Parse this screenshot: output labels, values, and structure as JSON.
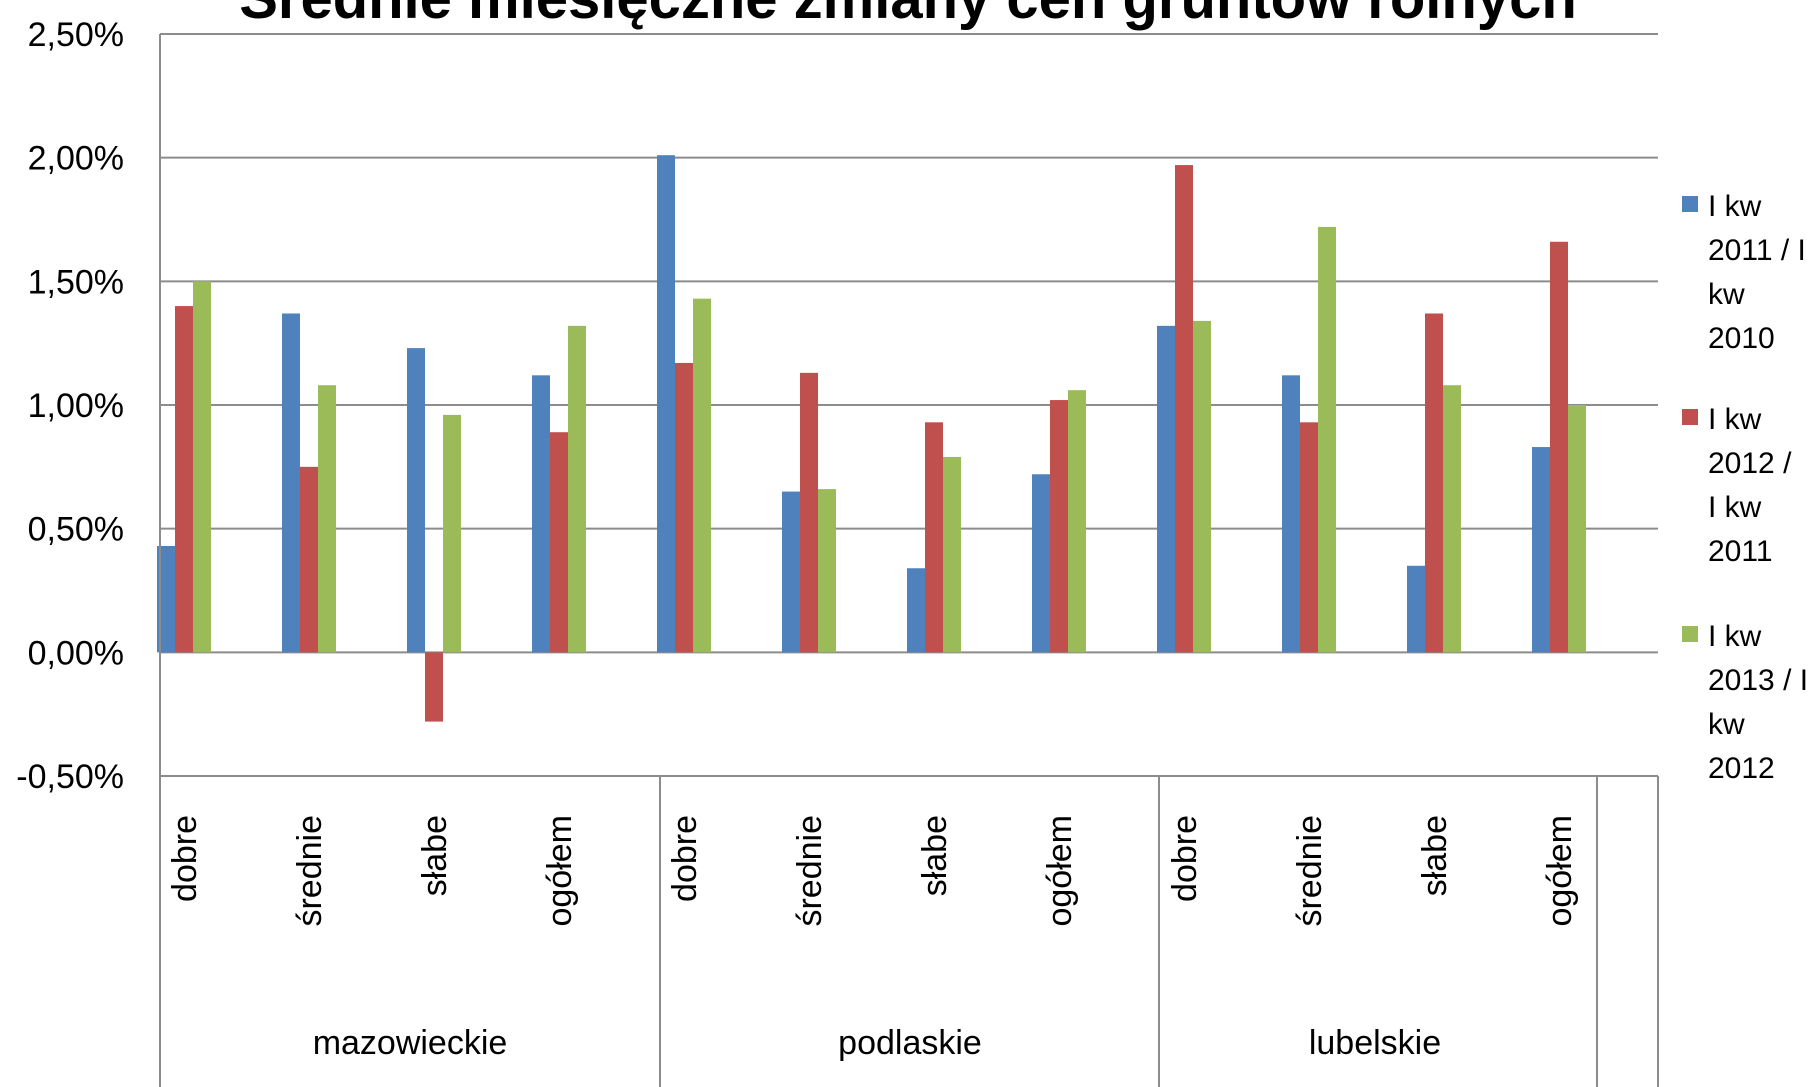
{
  "chart_data": {
    "type": "bar",
    "title": "Średnie miesięczne zmiany cen gruntów rolnych",
    "groups": [
      {
        "name": "mazowieckie",
        "categories": [
          "dobre",
          "średnie",
          "słabe",
          "ogółem"
        ]
      },
      {
        "name": "podlaskie",
        "categories": [
          "dobre",
          "średnie",
          "słabe",
          "ogółem"
        ]
      },
      {
        "name": "lubelskie",
        "categories": [
          "dobre",
          "średnie",
          "słabe",
          "ogółem"
        ]
      }
    ],
    "categories": [
      "dobre",
      "średnie",
      "słabe",
      "ogółem",
      "dobre",
      "średnie",
      "słabe",
      "ogółem",
      "dobre",
      "średnie",
      "słabe",
      "ogółem"
    ],
    "series": [
      {
        "name": "I kw 2011 / I kw 2010",
        "legend_lines": [
          "I kw",
          "2011 / I",
          "kw",
          "2010"
        ],
        "color": "#4F81BD",
        "values": [
          0.43,
          1.37,
          1.23,
          1.12,
          2.01,
          0.65,
          0.34,
          0.72,
          1.32,
          1.12,
          0.35,
          0.83
        ]
      },
      {
        "name": "I kw 2012 / I kw 2011",
        "legend_lines": [
          "I kw",
          "2012 /",
          "I kw",
          "2011"
        ],
        "color": "#C0504D",
        "values": [
          1.4,
          0.75,
          -0.28,
          0.89,
          1.17,
          1.13,
          0.93,
          1.02,
          1.97,
          0.93,
          1.37,
          1.66
        ]
      },
      {
        "name": "I kw 2013 / I kw 2012",
        "legend_lines": [
          "I kw",
          "2013 / I",
          "kw",
          "2012"
        ],
        "color": "#9BBB59",
        "values": [
          1.5,
          1.08,
          0.96,
          1.32,
          1.43,
          0.66,
          0.79,
          1.06,
          1.34,
          1.72,
          1.08,
          1.0
        ]
      }
    ],
    "ylim": [
      -0.5,
      2.5
    ],
    "y_ticks": [
      2.5,
      2.0,
      1.5,
      1.0,
      0.5,
      0.0,
      -0.5
    ],
    "y_tick_labels": [
      "2,50%",
      "2,00%",
      "1,50%",
      "1,00%",
      "0,50%",
      "0,00%",
      "-0,50%"
    ],
    "grid": true,
    "legend_position": "right"
  }
}
